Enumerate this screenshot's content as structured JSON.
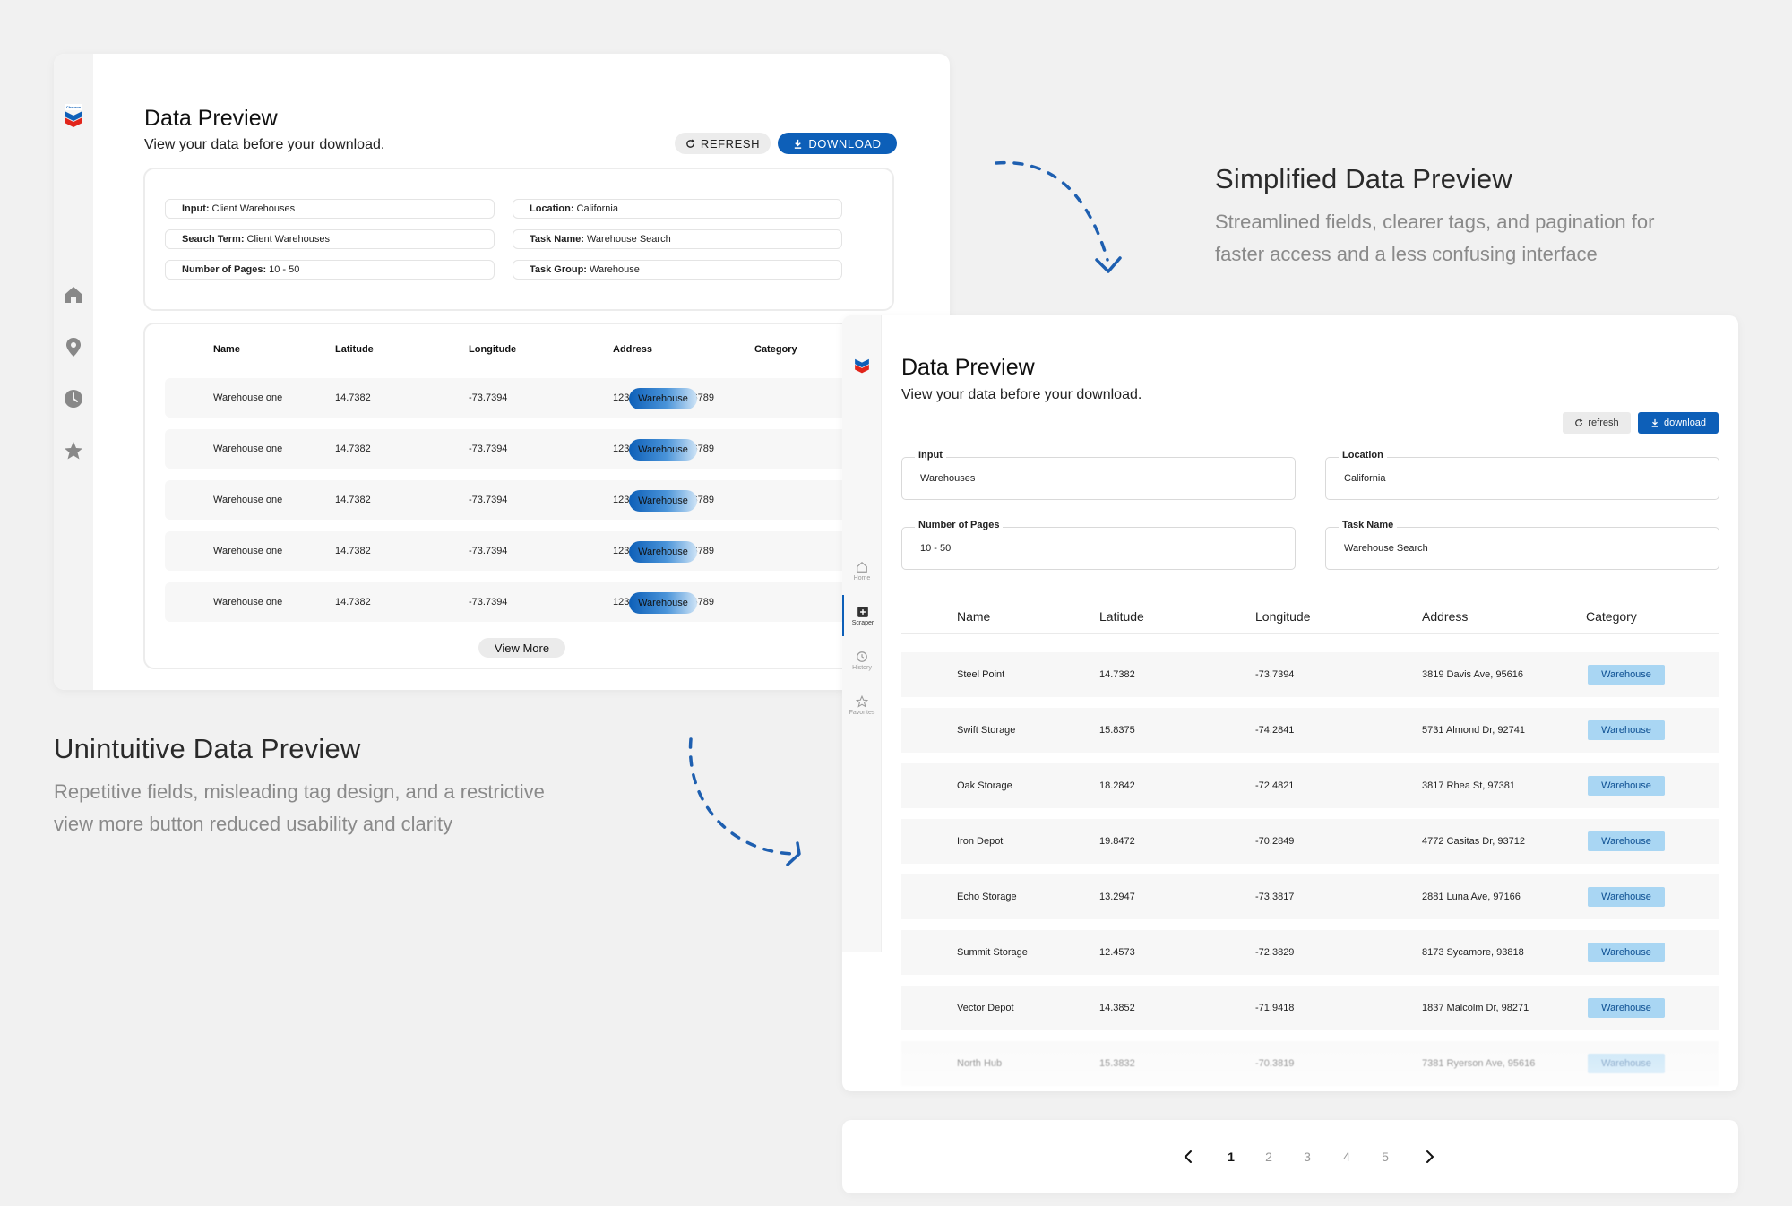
{
  "old_preview": {
    "title": "Data Preview",
    "subtitle": "View your data before your download.",
    "refresh_label": "REFRESH",
    "download_label": "DOWNLOAD",
    "fields": [
      {
        "label": "Input:",
        "value": "Client Warehouses"
      },
      {
        "label": "Location:",
        "value": "California"
      },
      {
        "label": "Search Term:",
        "value": "Client Warehouses"
      },
      {
        "label": "Task Name:",
        "value": "Warehouse Search"
      },
      {
        "label": "Number of Pages:",
        "value": "10 - 50"
      },
      {
        "label": "Task Group:",
        "value": "Warehouse"
      }
    ],
    "columns": [
      "Name",
      "Latitude",
      "Longitude",
      "Address",
      "Category"
    ],
    "rows": [
      [
        "Warehouse one",
        "14.7382",
        "-73.7394",
        "1234 Davis Ave, 56789",
        "Warehouse"
      ],
      [
        "Warehouse one",
        "14.7382",
        "-73.7394",
        "1234 Davis Ave, 56789",
        "Warehouse"
      ],
      [
        "Warehouse one",
        "14.7382",
        "-73.7394",
        "1234 Davis Ave, 56789",
        "Warehouse"
      ],
      [
        "Warehouse one",
        "14.7382",
        "-73.7394",
        "1234 Davis Ave, 56789",
        "Warehouse"
      ],
      [
        "Warehouse one",
        "14.7382",
        "-73.7394",
        "1234 Davis Ave, 56789",
        "Warehouse"
      ]
    ],
    "view_more_label": "View More"
  },
  "captions": {
    "new_title": "Simplified Data Preview",
    "new_body_line1": "Streamlined fields, clearer tags, and pagination for",
    "new_body_line2": "faster access and a less confusing interface",
    "old_title": "Unintuitive Data Preview",
    "old_body_line1": "Repetitive fields, misleading tag design, and a restrictive",
    "old_body_line2": "view more button reduced usability and clarity"
  },
  "new_preview": {
    "title": "Data Preview",
    "subtitle": "View your data before your download.",
    "refresh_label": "refresh",
    "download_label": "download",
    "nav": [
      {
        "label": "Home",
        "icon": "home-icon"
      },
      {
        "label": "Scraper",
        "icon": "plus-square-icon"
      },
      {
        "label": "History",
        "icon": "clock-icon"
      },
      {
        "label": "Favorites",
        "icon": "star-icon"
      }
    ],
    "fields": [
      {
        "label": "Input",
        "value": "Warehouses"
      },
      {
        "label": "Location",
        "value": "California"
      },
      {
        "label": "Number of Pages",
        "value": "10 - 50"
      },
      {
        "label": "Task Name",
        "value": "Warehouse Search"
      }
    ],
    "columns": [
      "Name",
      "Latitude",
      "Longitude",
      "Address",
      "Category"
    ],
    "rows": [
      [
        "Steel Point",
        "14.7382",
        "-73.7394",
        "3819 Davis Ave, 95616",
        "Warehouse"
      ],
      [
        "Swift Storage",
        "15.8375",
        "-74.2841",
        "5731 Almond Dr, 92741",
        "Warehouse"
      ],
      [
        "Oak Storage",
        "18.2842",
        "-72.4821",
        "3817 Rhea St, 97381",
        "Warehouse"
      ],
      [
        "Iron Depot",
        "19.8472",
        "-70.2849",
        "4772 Casitas Dr, 93712",
        "Warehouse"
      ],
      [
        "Echo Storage",
        "13.2947",
        "-73.3817",
        "2881 Luna Ave, 97166",
        "Warehouse"
      ],
      [
        "Summit Storage",
        "12.4573",
        "-72.3829",
        "8173 Sycamore, 93818",
        "Warehouse"
      ],
      [
        "Vector Depot",
        "14.3852",
        "-71.9418",
        "1837 Malcolm Dr, 98271",
        "Warehouse"
      ],
      [
        "North Hub",
        "15.3832",
        "-70.3819",
        "7381 Ryerson Ave, 95616",
        "Warehouse"
      ]
    ],
    "pages": [
      "1",
      "2",
      "3",
      "4",
      "5"
    ],
    "current_page": "1"
  },
  "colors": {
    "brand_blue": "#0d5fb8",
    "tag_light_blue": "#a9d6f3",
    "background": "#f1f1f1"
  }
}
